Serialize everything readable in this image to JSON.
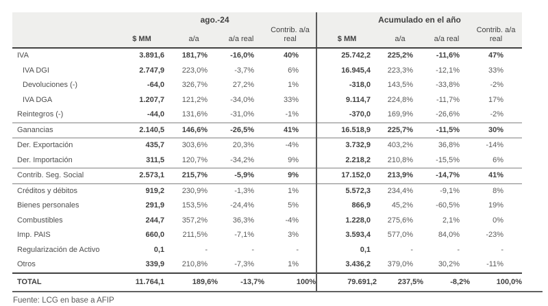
{
  "table": {
    "column_groups": {
      "month": "ago.-24",
      "ytd": "Acumulado en el año"
    },
    "columns": [
      "$ MM",
      "a/a",
      "a/a real",
      "Contrib. a/a real"
    ],
    "rows": [
      {
        "label": "IVA",
        "emphasis": true,
        "indent": false,
        "rule_below": false,
        "month": [
          "3.891,6",
          "181,7%",
          "-16,0%",
          "40%"
        ],
        "ytd": [
          "25.742,2",
          "225,2%",
          "-11,6%",
          "47%"
        ]
      },
      {
        "label": "IVA DGI",
        "emphasis": false,
        "indent": true,
        "rule_below": false,
        "month": [
          "2.747,9",
          "223,0%",
          "-3,7%",
          "6%"
        ],
        "ytd": [
          "16.945,4",
          "223,3%",
          "-12,1%",
          "33%"
        ]
      },
      {
        "label": "Devoluciones (-)",
        "emphasis": false,
        "indent": true,
        "rule_below": false,
        "month": [
          "-64,0",
          "326,7%",
          "27,2%",
          "1%"
        ],
        "ytd": [
          "-318,0",
          "143,5%",
          "-33,8%",
          "-2%"
        ]
      },
      {
        "label": "IVA DGA",
        "emphasis": false,
        "indent": true,
        "rule_below": false,
        "month": [
          "1.207,7",
          "121,2%",
          "-34,0%",
          "33%"
        ],
        "ytd": [
          "9.114,7",
          "224,8%",
          "-11,7%",
          "17%"
        ]
      },
      {
        "label": "Reintegros (-)",
        "emphasis": false,
        "indent": false,
        "rule_below": true,
        "month": [
          "-44,0",
          "131,6%",
          "-31,0%",
          "-1%"
        ],
        "ytd": [
          "-370,0",
          "169,9%",
          "-26,6%",
          "-2%"
        ]
      },
      {
        "label": "Ganancias",
        "emphasis": true,
        "indent": false,
        "rule_below": true,
        "month": [
          "2.140,5",
          "146,6%",
          "-26,5%",
          "41%"
        ],
        "ytd": [
          "16.518,9",
          "225,7%",
          "-11,5%",
          "30%"
        ]
      },
      {
        "label": "Der. Exportación",
        "emphasis": false,
        "indent": false,
        "rule_below": false,
        "month": [
          "435,7",
          "303,6%",
          "20,3%",
          "-4%"
        ],
        "ytd": [
          "3.732,9",
          "403,2%",
          "36,8%",
          "-14%"
        ]
      },
      {
        "label": "Der. Importación",
        "emphasis": false,
        "indent": false,
        "rule_below": true,
        "month": [
          "311,5",
          "120,7%",
          "-34,2%",
          "9%"
        ],
        "ytd": [
          "2.218,2",
          "210,8%",
          "-15,5%",
          "6%"
        ]
      },
      {
        "label": "Contrib. Seg. Social",
        "emphasis": true,
        "indent": false,
        "rule_below": true,
        "month": [
          "2.573,1",
          "215,7%",
          "-5,9%",
          "9%"
        ],
        "ytd": [
          "17.152,0",
          "213,9%",
          "-14,7%",
          "41%"
        ]
      },
      {
        "label": "Créditos y débitos",
        "emphasis": false,
        "indent": false,
        "rule_below": false,
        "month": [
          "919,2",
          "230,9%",
          "-1,3%",
          "1%"
        ],
        "ytd": [
          "5.572,3",
          "234,4%",
          "-9,1%",
          "8%"
        ]
      },
      {
        "label": "Bienes personales",
        "emphasis": false,
        "indent": false,
        "rule_below": false,
        "month": [
          "291,9",
          "153,5%",
          "-24,4%",
          "5%"
        ],
        "ytd": [
          "866,9",
          "45,2%",
          "-60,5%",
          "19%"
        ]
      },
      {
        "label": "Combustibles",
        "emphasis": false,
        "indent": false,
        "rule_below": false,
        "month": [
          "244,7",
          "357,2%",
          "36,3%",
          "-4%"
        ],
        "ytd": [
          "1.228,0",
          "275,6%",
          "2,1%",
          "0%"
        ]
      },
      {
        "label": "Imp. PAIS",
        "emphasis": false,
        "indent": false,
        "rule_below": false,
        "month": [
          "660,0",
          "211,5%",
          "-7,1%",
          "3%"
        ],
        "ytd": [
          "3.593,4",
          "577,0%",
          "84,0%",
          "-23%"
        ]
      },
      {
        "label": "Regularización de Activo",
        "emphasis": false,
        "indent": false,
        "rule_below": false,
        "month": [
          "0,1",
          "-",
          "-",
          "-"
        ],
        "ytd": [
          "0,1",
          "-",
          "-",
          "-"
        ]
      },
      {
        "label": "Otros",
        "emphasis": false,
        "indent": false,
        "rule_below": false,
        "month": [
          "339,9",
          "210,8%",
          "-7,3%",
          "1%"
        ],
        "ytd": [
          "3.436,2",
          "379,0%",
          "30,2%",
          "-11%"
        ]
      }
    ],
    "total": {
      "label": "TOTAL",
      "month": [
        "11.764,1",
        "189,6%",
        "-13,7%",
        "100%"
      ],
      "ytd": [
        "79.691,2",
        "237,5%",
        "-8,2%",
        "100,0%"
      ]
    }
  },
  "footer": {
    "source": "Fuente: LCG en base a AFIP"
  },
  "colors": {
    "header_bg": "#efefed",
    "divider": "#595959",
    "text_regular": "#595959",
    "text_bold": "#3f3f3f",
    "group_rule": "#808080",
    "heavy_rule": "#404040"
  }
}
